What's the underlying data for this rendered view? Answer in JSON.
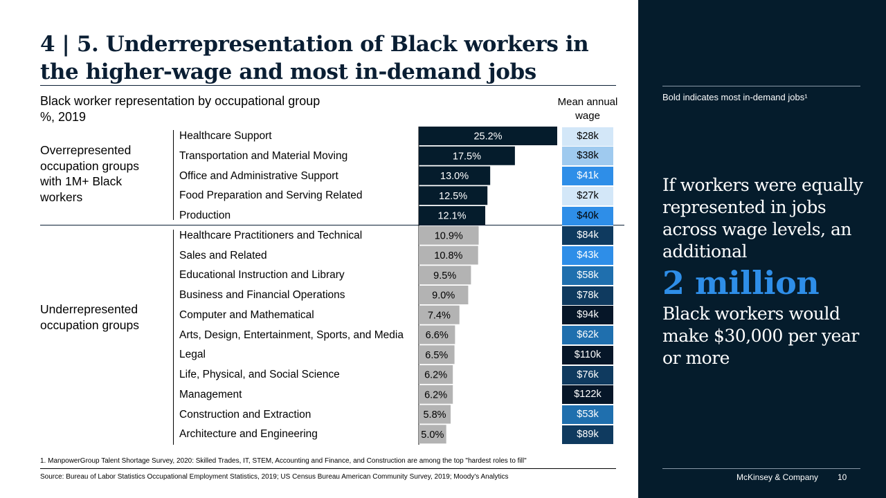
{
  "title": {
    "line1": "4 | 5. Underrepresentation of Black workers in",
    "line2": "the higher-wage and most in-demand jobs"
  },
  "subtitle": {
    "line1": "Black worker representation by occupational group",
    "line2": "%, 2019"
  },
  "wage_header": {
    "line1": "Mean annual",
    "line2": "wage"
  },
  "groups": {
    "over": "Overrepresented\noccupation groups\nwith 1M+ Black\nworkers",
    "under": "Underrepresented\noccupation groups"
  },
  "colors": {
    "over_bar": "#051c2c",
    "under_bar": "#b3b3b3",
    "panel_bg": "#051c2c",
    "accent": "#2e8ee8"
  },
  "chart_data": {
    "type": "bar",
    "orientation": "horizontal",
    "title": "Black worker representation by occupational group",
    "ylabel": "%, 2019",
    "xlim": [
      0,
      25.2
    ],
    "categories": [
      "Healthcare Support",
      "Transportation and Material Moving",
      "Office and Administrative Support",
      "Food Preparation and Serving Related",
      "Production",
      "Healthcare Practitioners and Technical",
      "Sales and Related",
      "Educational Instruction and Library",
      "Business and Financial Operations",
      "Computer and Mathematical",
      "Arts, Design, Entertainment, Sports, and Media",
      "Legal",
      "Life, Physical, and Social Science",
      "Management",
      "Construction and Extraction",
      "Architecture and Engineering"
    ],
    "values": [
      25.2,
      17.5,
      13.0,
      12.5,
      12.1,
      10.9,
      10.8,
      9.5,
      9.0,
      7.4,
      6.6,
      6.5,
      6.2,
      6.2,
      5.8,
      5.0
    ],
    "value_labels": [
      "25.2%",
      "17.5%",
      "13.0%",
      "12.5%",
      "12.1%",
      "10.9%",
      "10.8%",
      "9.5%",
      "9.0%",
      "7.4%",
      "6.6%",
      "6.5%",
      "6.2%",
      "6.2%",
      "5.8%",
      "5.0%"
    ],
    "group": [
      "over",
      "over",
      "over",
      "over",
      "over",
      "under",
      "under",
      "under",
      "under",
      "under",
      "under",
      "under",
      "under",
      "under",
      "under",
      "under"
    ],
    "wages": [
      28,
      38,
      41,
      27,
      40,
      84,
      43,
      58,
      78,
      94,
      62,
      110,
      76,
      122,
      53,
      89
    ],
    "wage_labels": [
      "$28k",
      "$38k",
      "$41k",
      "$27k",
      "$40k",
      "$84k",
      "$43k",
      "$58k",
      "$78k",
      "$94k",
      "$62k",
      "$110k",
      "$76k",
      "$122k",
      "$53k",
      "$89k"
    ],
    "wage_colors": [
      "#d3e7f8",
      "#9fcaef",
      "#2e8ee8",
      "#d3e7f8",
      "#2e8ee8",
      "#0f3a5f",
      "#2e8ee8",
      "#1f6fae",
      "#0f3a5f",
      "#061628",
      "#1f6fae",
      "#061628",
      "#0f3a5f",
      "#061628",
      "#1f6fae",
      "#0f3a5f"
    ],
    "wage_text_colors": [
      "#000000",
      "#000000",
      "#ffffff",
      "#000000",
      "#000000",
      "#ffffff",
      "#ffffff",
      "#ffffff",
      "#ffffff",
      "#ffffff",
      "#ffffff",
      "#ffffff",
      "#ffffff",
      "#ffffff",
      "#ffffff",
      "#ffffff"
    ],
    "in_demand_bold": "none visible",
    "grid": false
  },
  "right_panel": {
    "note": "Bold indicates most in-demand jobs¹",
    "callout_1": "If workers were equally represented in jobs across wage levels, an additional",
    "callout_big": "2 million",
    "callout_2": "Black workers would make $30,000 per year or more",
    "brand": "McKinsey & Company",
    "page": "10"
  },
  "footnote": "1.    ManpowerGroup Talent Shortage Survey, 2020: Skilled Trades, IT, STEM, Accounting and Finance, and Construction are among the top \"hardest roles to fill\"",
  "source": "Source: Bureau of Labor Statistics Occupational Employment Statistics, 2019; US Census Bureau American Community Survey, 2019; Moody's Analytics"
}
